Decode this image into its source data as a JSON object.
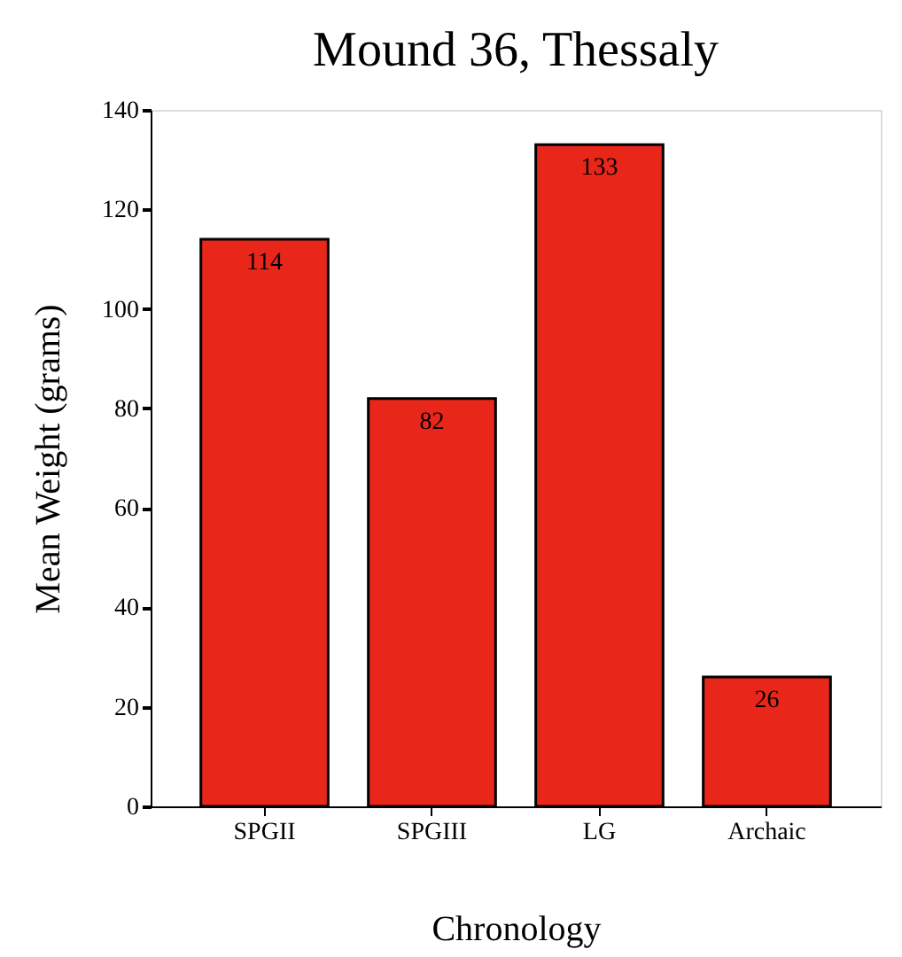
{
  "chart_data": {
    "type": "bar",
    "title": "Mound 36, Thessaly",
    "xlabel": "Chronology",
    "ylabel": "Mean Weight (grams)",
    "categories": [
      "SPGII",
      "SPGIII",
      "LG",
      "Archaic"
    ],
    "values": [
      114,
      82,
      133,
      26
    ],
    "color": "#e8261a",
    "ylim": [
      0,
      140
    ],
    "yticks": [
      0,
      20,
      40,
      60,
      80,
      100,
      120,
      140
    ],
    "grid": false,
    "data_labels": true
  }
}
